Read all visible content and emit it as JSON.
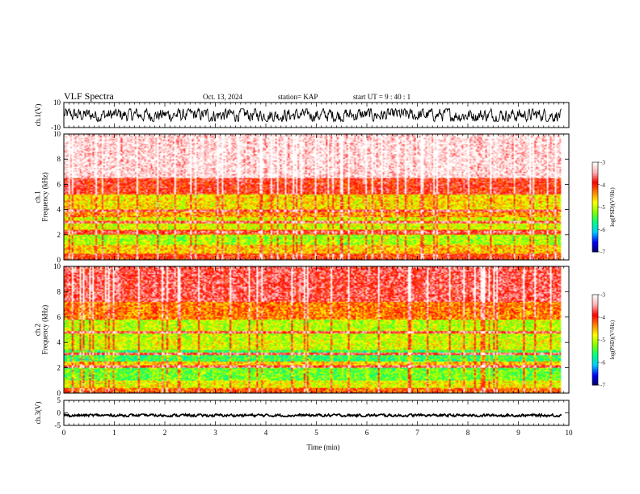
{
  "header": {
    "title": "VLF Spectra",
    "date": "Oct. 13, 2024",
    "station": "station= KAP",
    "start": "start  UT =  9 : 40 : 1"
  },
  "chart_data": [
    {
      "type": "line",
      "panel": "ch1-waveform",
      "ylabel": "ch.1(V)",
      "ylim": [
        -10,
        10
      ],
      "yticks": [
        "10",
        "-10"
      ],
      "xlim": [
        0,
        10
      ],
      "data_extent_min": [
        0,
        9.85
      ],
      "amplitude_V": [
        -5,
        5
      ],
      "color": "#000000"
    },
    {
      "type": "heatmap",
      "panel": "ch1-spectrogram",
      "ylabel": "ch.1\nFrequency (kHz)",
      "xlim": [
        0,
        10
      ],
      "ylim": [
        0,
        10
      ],
      "yticks": [
        "0",
        "2",
        "4",
        "6",
        "8",
        "10"
      ],
      "data_extent_min": [
        0,
        9.85
      ],
      "bands": [
        {
          "f_kHz": [
            0,
            0.5
          ],
          "level": -4.0
        },
        {
          "f_kHz": [
            0.5,
            1.2
          ],
          "level": -4.6
        },
        {
          "f_kHz": [
            1.2,
            2.0
          ],
          "level": -5.1
        },
        {
          "f_kHz": [
            2.0,
            2.4
          ],
          "level": -4.1
        },
        {
          "f_kHz": [
            2.4,
            3.4
          ],
          "level": -4.9
        },
        {
          "f_kHz": [
            3.4,
            4.0
          ],
          "level": -4.4
        },
        {
          "f_kHz": [
            4.0,
            5.2
          ],
          "level": -4.7
        },
        {
          "f_kHz": [
            5.2,
            6.5
          ],
          "level": -3.9
        },
        {
          "f_kHz": [
            6.5,
            10
          ],
          "level": -3.2
        }
      ],
      "lines_kHz": [
        2.2,
        3.0,
        3.9
      ],
      "colorbar": {
        "label": "log(PSD)(V²/Hz)",
        "range": [
          -7,
          -3
        ],
        "ticks": [
          "-3",
          "-4",
          "-5",
          "-6",
          "-7"
        ]
      }
    },
    {
      "type": "heatmap",
      "panel": "ch2-spectrogram",
      "ylabel": "ch.2\nFrequency (kHz)",
      "xlim": [
        0,
        10
      ],
      "ylim": [
        0,
        10
      ],
      "yticks": [
        "0",
        "2",
        "4",
        "6",
        "8",
        "10"
      ],
      "data_extent_min": [
        0,
        9.85
      ],
      "bands": [
        {
          "f_kHz": [
            0,
            0.4
          ],
          "level": -4.2
        },
        {
          "f_kHz": [
            0.4,
            1.0
          ],
          "level": -4.8
        },
        {
          "f_kHz": [
            1.0,
            2.0
          ],
          "level": -5.3
        },
        {
          "f_kHz": [
            2.0,
            2.5
          ],
          "level": -4.6
        },
        {
          "f_kHz": [
            2.5,
            3.4
          ],
          "level": -5.5
        },
        {
          "f_kHz": [
            3.4,
            4.2
          ],
          "level": -4.9
        },
        {
          "f_kHz": [
            4.2,
            5.8
          ],
          "level": -5.0
        },
        {
          "f_kHz": [
            5.8,
            7.2
          ],
          "level": -4.3
        },
        {
          "f_kHz": [
            7.2,
            10
          ],
          "level": -3.7
        }
      ],
      "lines_kHz": [
        2.1,
        3.1,
        4.8
      ],
      "colorbar": {
        "label": "log(PSD)(V²/Hz)",
        "range": [
          -7,
          -3
        ],
        "ticks": [
          "-3",
          "-4",
          "-5",
          "-6",
          "-7"
        ]
      }
    },
    {
      "type": "line",
      "panel": "ch3-waveform",
      "ylabel": "ch.3(V)",
      "ylim": [
        -5,
        5
      ],
      "yticks": [
        "5",
        "0",
        "-5"
      ],
      "xlim": [
        0,
        10
      ],
      "xticks": [
        "0",
        "1",
        "2",
        "3",
        "4",
        "5",
        "6",
        "7",
        "8",
        "9",
        "10"
      ],
      "xlabel": "Time (min)",
      "data_extent_min": [
        0,
        9.85
      ],
      "amplitude_V": [
        -0.5,
        0.5
      ],
      "offset_V": -1,
      "color": "#000000"
    }
  ],
  "colors": {
    "scale": [
      "#000060",
      "#0000ff",
      "#00ccff",
      "#00ff80",
      "#80ff00",
      "#ffff00",
      "#ff8000",
      "#ff0000",
      "#ffb0b0",
      "#ffffff"
    ]
  }
}
